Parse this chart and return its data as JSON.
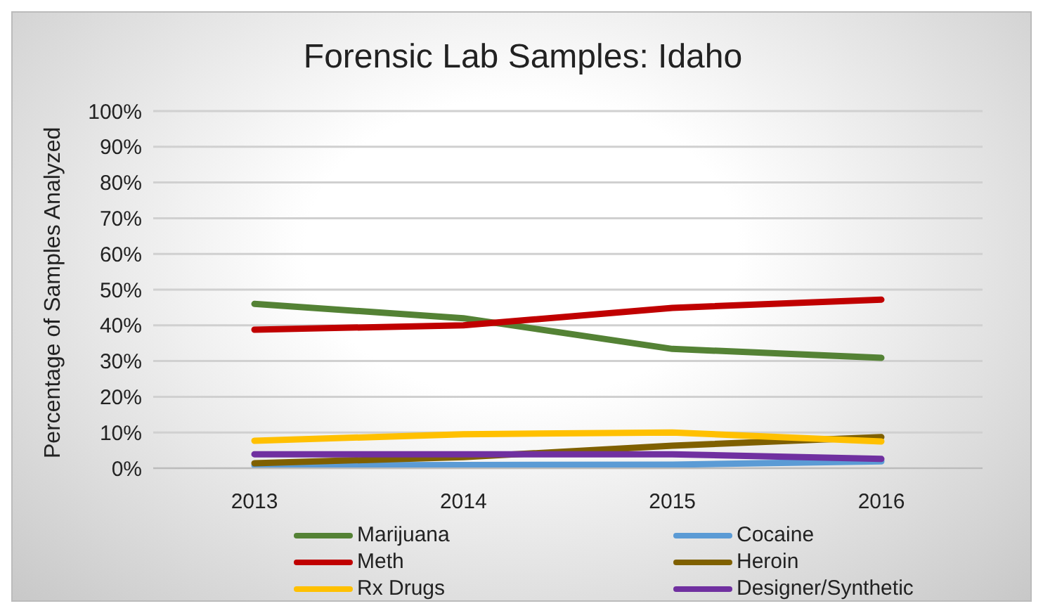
{
  "chart_data": {
    "type": "line",
    "title": "Forensic Lab Samples: Idaho",
    "ylabel": "Percentage of Samples Analyzed",
    "categories": [
      "2013",
      "2014",
      "2015",
      "2016"
    ],
    "series": [
      {
        "name": "Marijuana",
        "color": "#548235",
        "values": [
          46,
          42,
          33.4,
          30.9
        ]
      },
      {
        "name": "Cocaine",
        "color": "#5b9bd5",
        "values": [
          0.8,
          0.9,
          1.0,
          1.9
        ]
      },
      {
        "name": "Meth",
        "color": "#c00000",
        "values": [
          38.8,
          40,
          44.9,
          47.2
        ]
      },
      {
        "name": "Heroin",
        "color": "#7f6000",
        "values": [
          1.4,
          3.1,
          6.3,
          8.7
        ]
      },
      {
        "name": "Rx Drugs",
        "color": "#ffc000",
        "values": [
          7.7,
          9.5,
          10,
          7.5
        ]
      },
      {
        "name": "Designer/Synthetic",
        "color": "#7030a0",
        "values": [
          3.9,
          3.9,
          3.9,
          2.6
        ]
      }
    ],
    "ylim": [
      0,
      100
    ],
    "yticks": [
      {
        "value": 0,
        "label": "0%"
      },
      {
        "value": 10,
        "label": "10%"
      },
      {
        "value": 20,
        "label": "20%"
      },
      {
        "value": 30,
        "label": "30%"
      },
      {
        "value": 40,
        "label": "40%"
      },
      {
        "value": 50,
        "label": "50%"
      },
      {
        "value": 60,
        "label": "60%"
      },
      {
        "value": 70,
        "label": "70%"
      },
      {
        "value": 80,
        "label": "80%"
      },
      {
        "value": 90,
        "label": "90%"
      },
      {
        "value": 100,
        "label": "100%"
      }
    ],
    "grid": "y",
    "legend": "bottom",
    "marker": "none",
    "line_style": "solid"
  }
}
